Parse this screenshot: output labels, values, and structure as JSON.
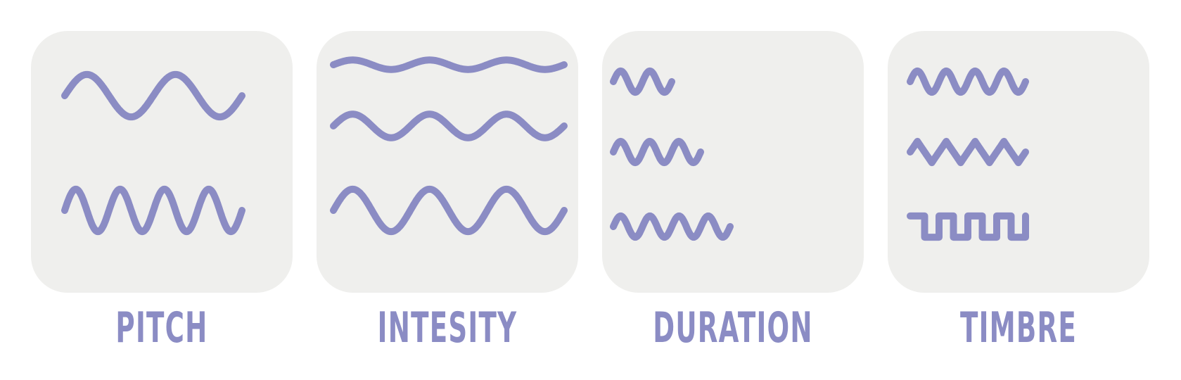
{
  "accent_color": "#8b8cc4",
  "panel_color": "#efefed",
  "panels": [
    {
      "label": "PITCH",
      "waves": [
        {
          "shape": "sine",
          "cycles": 2,
          "amplitude": 0.36
        },
        {
          "shape": "sine",
          "cycles": 4,
          "amplitude": 0.36
        }
      ]
    },
    {
      "label": "INTESITY",
      "waves": [
        {
          "shape": "sine",
          "cycles": 3,
          "amplitude": 0.08
        },
        {
          "shape": "sine",
          "cycles": 3,
          "amplitude": 0.2
        },
        {
          "shape": "sine",
          "cycles": 3,
          "amplitude": 0.36
        }
      ]
    },
    {
      "label": "DURATION",
      "waves": [
        {
          "shape": "sine",
          "cycles": 2,
          "amplitude": 0.18
        },
        {
          "shape": "sine",
          "cycles": 3,
          "amplitude": 0.18
        },
        {
          "shape": "sine",
          "cycles": 4,
          "amplitude": 0.18
        }
      ]
    },
    {
      "label": "TIMBRE",
      "waves": [
        {
          "shape": "sine",
          "cycles": 4,
          "amplitude": 0.18
        },
        {
          "shape": "triangle",
          "cycles": 4,
          "amplitude": 0.18
        },
        {
          "shape": "square",
          "cycles": 4,
          "amplitude": 0.18
        }
      ]
    }
  ]
}
